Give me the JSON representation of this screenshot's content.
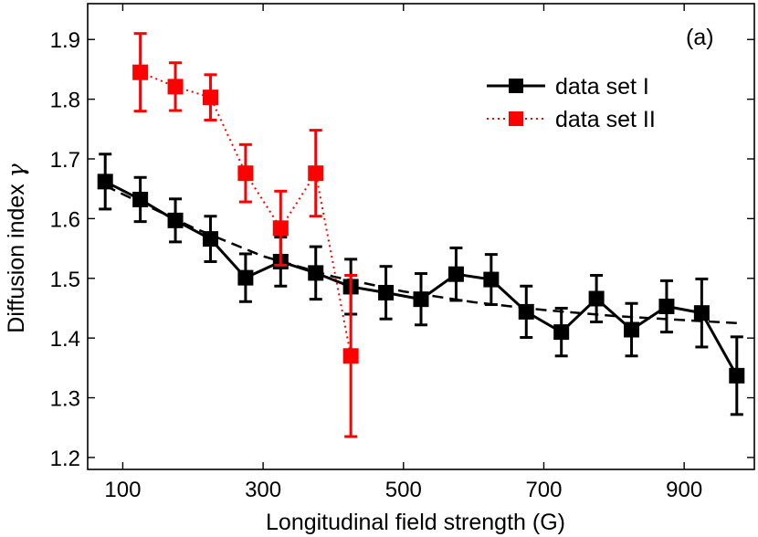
{
  "chart_data": {
    "type": "line",
    "title": "",
    "panel_label": "(a)",
    "xlabel": "Longitudinal field strength (G)",
    "ylabel_text": "Diffusion index",
    "ylabel_symbol": "γ",
    "xlim": [
      50,
      1000
    ],
    "ylim": [
      1.18,
      1.96
    ],
    "xticks": [
      100,
      300,
      500,
      700,
      900
    ],
    "yticks": [
      1.2,
      1.3,
      1.4,
      1.5,
      1.6,
      1.7,
      1.8,
      1.9
    ],
    "ytick_labels": [
      "1.2",
      "1.3",
      "1.4",
      "1.5",
      "1.6",
      "1.7",
      "1.8",
      "1.9"
    ],
    "legend_position": "top-right",
    "series": [
      {
        "name": "data set I",
        "color": "#000000",
        "line_style": "solid",
        "x": [
          75,
          125,
          175,
          225,
          275,
          325,
          375,
          425,
          475,
          525,
          575,
          625,
          675,
          725,
          775,
          825,
          875,
          925,
          975
        ],
        "y": [
          1.662,
          1.632,
          1.597,
          1.566,
          1.501,
          1.528,
          1.509,
          1.486,
          1.476,
          1.465,
          1.507,
          1.498,
          1.444,
          1.41,
          1.466,
          1.414,
          1.453,
          1.442,
          1.337
        ],
        "err": [
          0.046,
          0.037,
          0.036,
          0.038,
          0.04,
          0.041,
          0.044,
          0.046,
          0.044,
          0.043,
          0.044,
          0.042,
          0.043,
          0.04,
          0.039,
          0.044,
          0.043,
          0.057,
          0.065
        ]
      },
      {
        "name": "data set II",
        "color": "#ff0000",
        "line_style": "dotted",
        "x": [
          125,
          175,
          225,
          275,
          325,
          375,
          425
        ],
        "y": [
          1.845,
          1.821,
          1.803,
          1.676,
          1.584,
          1.676,
          1.37
        ],
        "err": [
          0.065,
          0.04,
          0.038,
          0.048,
          0.062,
          0.072,
          0.135
        ]
      }
    ],
    "fit_line": {
      "style": "dashed",
      "color": "#000000",
      "x": [
        75,
        200,
        300,
        400,
        500,
        600,
        700,
        800,
        900,
        975
      ],
      "y": [
        1.655,
        1.585,
        1.537,
        1.503,
        1.478,
        1.46,
        1.447,
        1.437,
        1.43,
        1.425
      ]
    }
  }
}
